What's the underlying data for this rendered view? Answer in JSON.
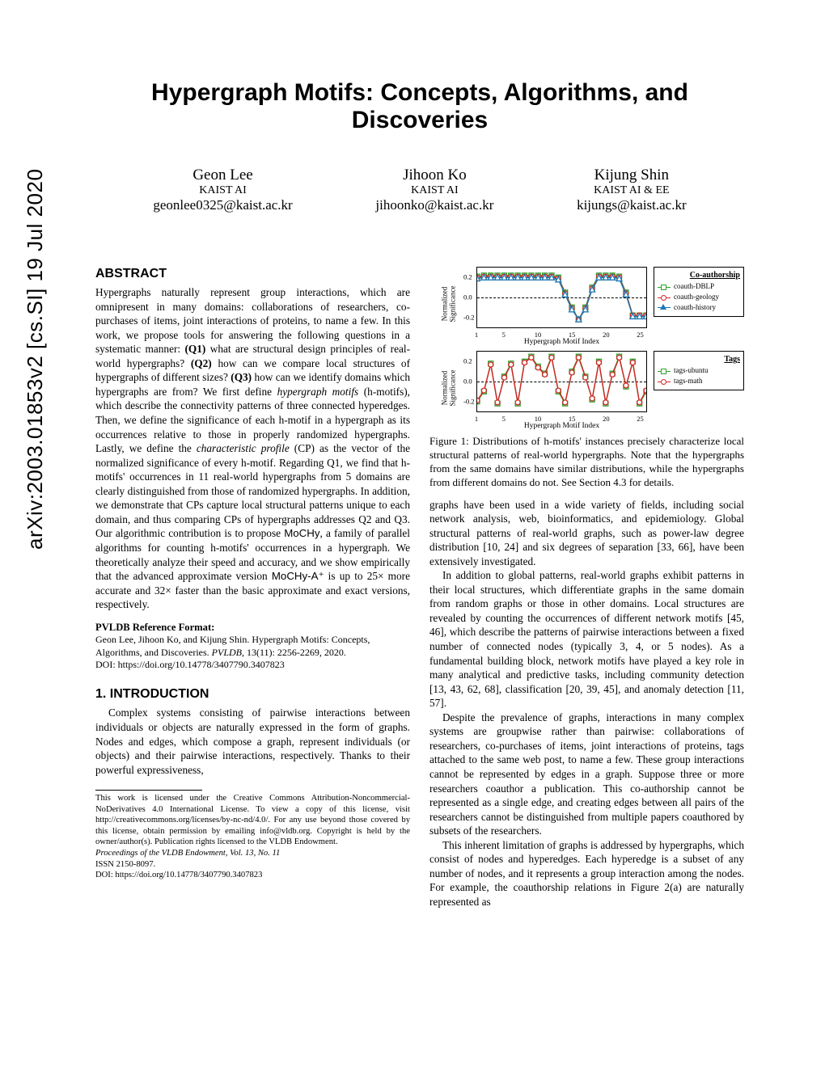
{
  "arxiv_stamp": "arXiv:2003.01853v2  [cs.SI]  19 Jul 2020",
  "title": "Hypergraph Motifs: Concepts, Algorithms, and Discoveries",
  "authors": [
    {
      "name": "Geon Lee",
      "affil": "KAIST AI",
      "email": "geonlee0325@kaist.ac.kr"
    },
    {
      "name": "Jihoon Ko",
      "affil": "KAIST AI",
      "email": "jihoonko@kaist.ac.kr"
    },
    {
      "name": "Kijung Shin",
      "affil": "KAIST AI & EE",
      "email": "kijungs@kaist.ac.kr"
    }
  ],
  "abstract_head": "ABSTRACT",
  "abstract_body": "Hypergraphs naturally represent group interactions, which are omnipresent in many domains: collaborations of researchers, co-purchases of items, joint interactions of proteins, to name a few. In this work, we propose tools for answering the following questions in a systematic manner: (Q1) what are structural design principles of real-world hypergraphs? (Q2) how can we compare local structures of hypergraphs of different sizes? (Q3) how can we identify domains which hypergraphs are from? We first define hypergraph motifs (h-motifs), which describe the connectivity patterns of three connected hyperedges. Then, we define the significance of each h-motif in a hypergraph as its occurrences relative to those in properly randomized hypergraphs. Lastly, we define the characteristic profile (CP) as the vector of the normalized significance of every h-motif. Regarding Q1, we find that h-motifs' occurrences in 11 real-world hypergraphs from 5 domains are clearly distinguished from those of randomized hypergraphs. In addition, we demonstrate that CPs capture local structural patterns unique to each domain, and thus comparing CPs of hypergraphs addresses Q2 and Q3. Our algorithmic contribution is to propose MoCHy, a family of parallel algorithms for counting h-motifs' occurrences in a hypergraph. We theoretically analyze their speed and accuracy, and we show empirically that the advanced approximate version MoCHy-A⁺ is up to 25× more accurate and 32× faster than the basic approximate and exact versions, respectively.",
  "pvldb_head": "PVLDB Reference Format:",
  "pvldb_body": "Geon Lee, Jihoon Ko, and Kijung Shin. Hypergraph Motifs: Concepts, Algorithms, and Discoveries. PVLDB, 13(11): 2256-2269, 2020.",
  "pvldb_doi": "DOI: https://doi.org/10.14778/3407790.3407823",
  "intro_head": "1.   INTRODUCTION",
  "intro_p1": "Complex systems consisting of pairwise interactions between individuals or objects are naturally expressed in the form of graphs. Nodes and edges, which compose a graph, represent individuals (or objects) and their pairwise interactions, respectively. Thanks to their powerful expressiveness,",
  "license_p1": "This work is licensed under the Creative Commons Attribution-Noncommercial-NoDerivatives 4.0 International License. To view a copy of this license, visit http://creativecommons.org/licenses/by-nc-nd/4.0/. For any use beyond those covered by this license, obtain permission by emailing info@vldb.org. Copyright is held by the owner/author(s). Publication rights licensed to the VLDB Endowment.",
  "license_p2": "Proceedings of the VLDB Endowment, Vol. 13, No. 11",
  "license_p3": "ISSN 2150-8097.",
  "license_p4": "DOI: https://doi.org/10.14778/3407790.3407823",
  "figure": {
    "caption": "Figure 1: Distributions of h-motifs' instances precisely characterize local structural patterns of real-world hypergraphs. Note that the hypergraphs from the same domains have similar distributions, while the hypergraphs from different domains do not. See Section 4.3 for details.",
    "charts": [
      {
        "title": "Co-authorship",
        "ylabel": "Normalized\nSignificance",
        "xlabel": "Hypergraph Motif Index",
        "ylim": [
          -0.3,
          0.3
        ],
        "yticks": [
          -0.2,
          0.0,
          0.2
        ],
        "xlim": [
          1,
          26
        ],
        "xticks": [
          1,
          5,
          10,
          15,
          20,
          25
        ],
        "series": [
          {
            "name": "coauth-DBLP",
            "color": "#2ca02c",
            "marker": "square",
            "data": [
              0.21,
              0.22,
              0.22,
              0.22,
              0.22,
              0.22,
              0.22,
              0.22,
              0.22,
              0.22,
              0.22,
              0.22,
              0.2,
              0.05,
              -0.1,
              -0.22,
              -0.1,
              0.1,
              0.22,
              0.22,
              0.22,
              0.21,
              0.05,
              -0.18,
              -0.18,
              -0.18
            ]
          },
          {
            "name": "coauth-geology",
            "color": "#d62728",
            "marker": "circle",
            "data": [
              0.2,
              0.21,
              0.21,
              0.21,
              0.21,
              0.21,
              0.21,
              0.21,
              0.21,
              0.21,
              0.21,
              0.21,
              0.19,
              0.04,
              -0.11,
              -0.22,
              -0.11,
              0.09,
              0.21,
              0.21,
              0.21,
              0.2,
              0.04,
              -0.18,
              -0.18,
              -0.18
            ]
          },
          {
            "name": "coauth-history",
            "color": "#1f77b4",
            "marker": "triangle",
            "data": [
              0.19,
              0.2,
              0.2,
              0.2,
              0.2,
              0.2,
              0.2,
              0.2,
              0.2,
              0.2,
              0.2,
              0.2,
              0.18,
              0.03,
              -0.12,
              -0.22,
              -0.12,
              0.08,
              0.2,
              0.2,
              0.2,
              0.19,
              0.03,
              -0.19,
              -0.19,
              -0.19
            ]
          }
        ]
      },
      {
        "title": "Tags",
        "ylabel": "Normalized\nSignificance",
        "xlabel": "Hypergraph Motif Index",
        "ylim": [
          -0.3,
          0.3
        ],
        "yticks": [
          -0.2,
          0.0,
          0.2
        ],
        "xlim": [
          1,
          26
        ],
        "xticks": [
          1,
          5,
          10,
          15,
          20,
          25
        ],
        "series": [
          {
            "name": "tags-ubuntu",
            "color": "#2ca02c",
            "marker": "square",
            "data": [
              -0.2,
              -0.1,
              0.18,
              -0.22,
              0.05,
              0.18,
              -0.22,
              0.2,
              0.25,
              0.15,
              0.08,
              0.25,
              -0.1,
              -0.22,
              0.1,
              0.25,
              0.05,
              -0.18,
              0.2,
              -0.22,
              0.08,
              0.25,
              -0.05,
              0.2,
              -0.22,
              -0.1
            ]
          },
          {
            "name": "tags-math",
            "color": "#d62728",
            "marker": "circle",
            "data": [
              -0.19,
              -0.09,
              0.17,
              -0.21,
              0.04,
              0.17,
              -0.21,
              0.19,
              0.24,
              0.14,
              0.07,
              0.24,
              -0.09,
              -0.21,
              0.09,
              0.24,
              0.04,
              -0.17,
              0.19,
              -0.21,
              0.07,
              0.24,
              -0.04,
              0.19,
              -0.21,
              -0.09
            ]
          }
        ]
      }
    ]
  },
  "col2_p1": "graphs have been used in a wide variety of fields, including social network analysis, web, bioinformatics, and epidemiology. Global structural patterns of real-world graphs, such as power-law degree distribution [10, 24] and six degrees of separation [33, 66], have been extensively investigated.",
  "col2_p2": "In addition to global patterns, real-world graphs exhibit patterns in their local structures, which differentiate graphs in the same domain from random graphs or those in other domains. Local structures are revealed by counting the occurrences of different network motifs [45, 46], which describe the patterns of pairwise interactions between a fixed number of connected nodes (typically 3, 4, or 5 nodes). As a fundamental building block, network motifs have played a key role in many analytical and predictive tasks, including community detection [13, 43, 62, 68], classification [20, 39, 45], and anomaly detection [11, 57].",
  "col2_p3": "Despite the prevalence of graphs, interactions in many complex systems are groupwise rather than pairwise: collaborations of researchers, co-purchases of items, joint interactions of proteins, tags attached to the same web post, to name a few. These group interactions cannot be represented by edges in a graph. Suppose three or more researchers coauthor a publication. This co-authorship cannot be represented as a single edge, and creating edges between all pairs of the researchers cannot be distinguished from multiple papers coauthored by subsets of the researchers.",
  "col2_p4": "This inherent limitation of graphs is addressed by hypergraphs, which consist of nodes and hyperedges. Each hyperedge is a subset of any number of nodes, and it represents a group interaction among the nodes. For example, the coauthorship relations in Figure 2(a) are naturally represented as",
  "colors": {
    "green": "#2ca02c",
    "red": "#d62728",
    "blue": "#1f77b4"
  }
}
